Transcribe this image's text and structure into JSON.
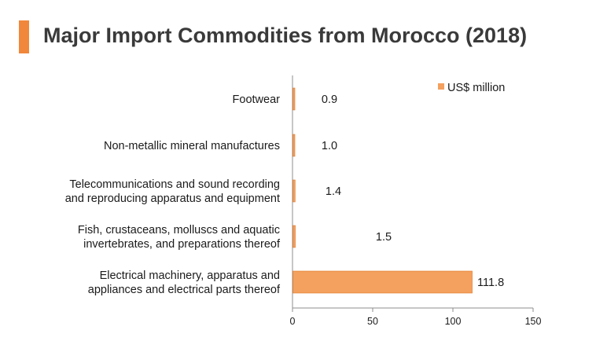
{
  "page": {
    "title": "Major Import Commodities from Morocco (2018)"
  },
  "colors": {
    "accent": "#f0873a",
    "bar": "#f4a05e",
    "bar_edge": "#e07b2c",
    "axis": "#8c8c8c",
    "text": "#1a1a1a",
    "title": "#3a3a3a"
  },
  "chart_data": {
    "type": "bar",
    "orientation": "horizontal",
    "title": "Major Import Commodities from Morocco (2018)",
    "categories": [
      [
        "Footwear"
      ],
      [
        "Non-metallic mineral manufactures"
      ],
      [
        "Telecommunications and sound recording",
        "and reproducing apparatus and equipment"
      ],
      [
        "Fish, crustaceans, molluscs and aquatic",
        "invertebrates, and preparations thereof"
      ],
      [
        "Electrical machinery, apparatus and",
        "appliances and electrical parts thereof"
      ]
    ],
    "series": [
      {
        "name": "US$ million",
        "values": [
          0.9,
          1.0,
          1.4,
          1.5,
          111.8
        ],
        "labels": [
          "0.9",
          "1.0",
          "1.4",
          "1.5",
          "111.8"
        ]
      }
    ],
    "xlim": [
      0,
      150
    ],
    "xticks": [
      0,
      50,
      100,
      150
    ],
    "xtick_labels": [
      "0",
      "50",
      "100",
      "150"
    ],
    "xlabel": "",
    "ylabel": "",
    "legend": {
      "position": "top-right",
      "entries": [
        "US$ million"
      ]
    },
    "grid": false
  }
}
